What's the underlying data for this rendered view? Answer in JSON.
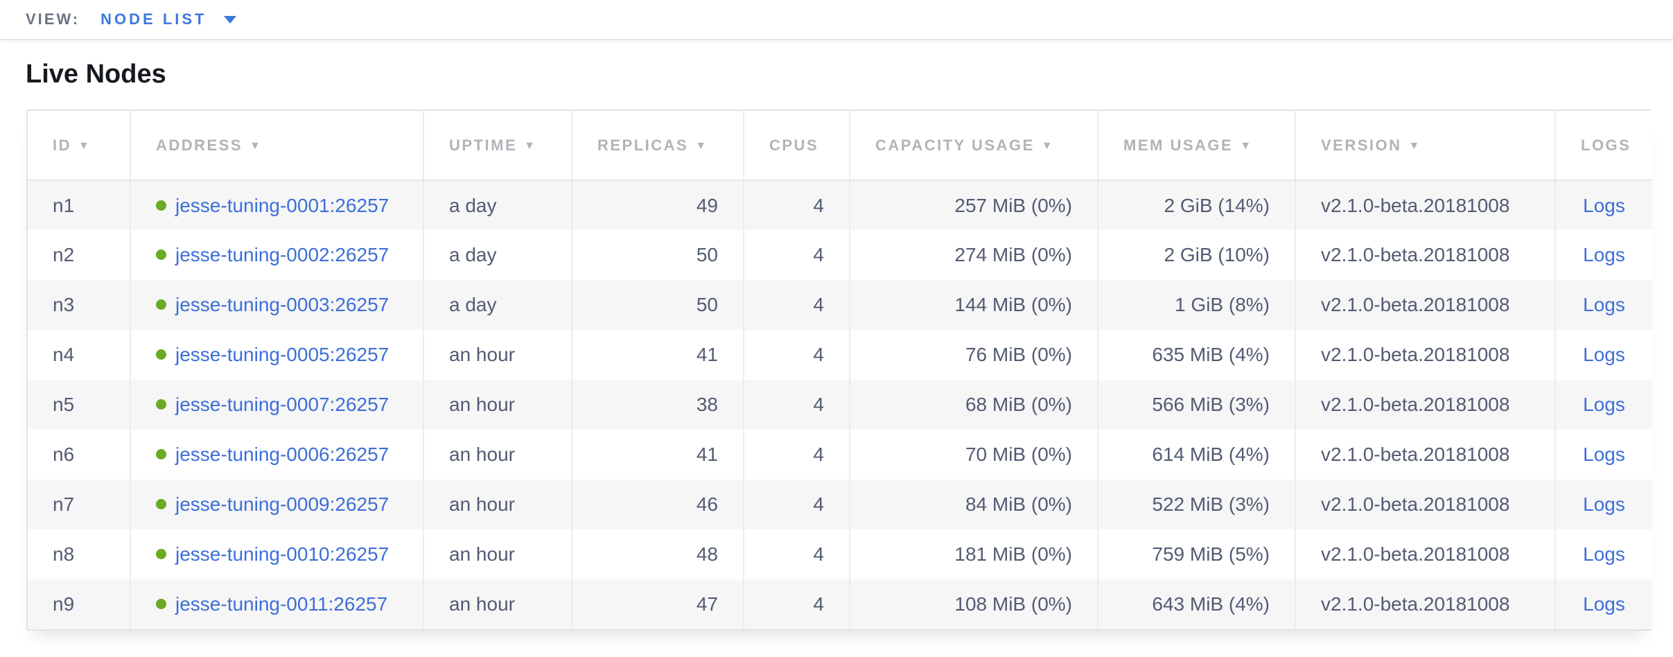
{
  "view_bar": {
    "label": "VIEW:",
    "selected": "NODE LIST"
  },
  "page": {
    "title": "Live Nodes"
  },
  "icons": {
    "sort_desc_caret": "▼"
  },
  "colors": {
    "accent_blue": "#3d78e0",
    "link_blue": "#3c6ed8",
    "live_status_green": "#69aa23",
    "header_text_gray": "#b1b3b8",
    "cell_text_slate": "#525b72"
  },
  "table": {
    "columns": [
      {
        "key": "id",
        "label": "ID",
        "sortable": true
      },
      {
        "key": "address",
        "label": "ADDRESS",
        "sortable": true
      },
      {
        "key": "uptime",
        "label": "UPTIME",
        "sortable": true
      },
      {
        "key": "replicas",
        "label": "REPLICAS",
        "sortable": true
      },
      {
        "key": "cpus",
        "label": "CPUS",
        "sortable": false
      },
      {
        "key": "capacity",
        "label": "CAPACITY USAGE",
        "sortable": true
      },
      {
        "key": "mem",
        "label": "MEM USAGE",
        "sortable": true
      },
      {
        "key": "version",
        "label": "VERSION",
        "sortable": true
      },
      {
        "key": "logs",
        "label": "LOGS",
        "sortable": false
      }
    ],
    "rows": [
      {
        "id": "n1",
        "status": "live",
        "address": "jesse-tuning-0001:26257",
        "uptime": "a day",
        "replicas": "49",
        "cpus": "4",
        "capacity": "257 MiB (0%)",
        "mem": "2 GiB (14%)",
        "version": "v2.1.0-beta.20181008",
        "logs": "Logs"
      },
      {
        "id": "n2",
        "status": "live",
        "address": "jesse-tuning-0002:26257",
        "uptime": "a day",
        "replicas": "50",
        "cpus": "4",
        "capacity": "274 MiB (0%)",
        "mem": "2 GiB (10%)",
        "version": "v2.1.0-beta.20181008",
        "logs": "Logs"
      },
      {
        "id": "n3",
        "status": "live",
        "address": "jesse-tuning-0003:26257",
        "uptime": "a day",
        "replicas": "50",
        "cpus": "4",
        "capacity": "144 MiB (0%)",
        "mem": "1 GiB (8%)",
        "version": "v2.1.0-beta.20181008",
        "logs": "Logs"
      },
      {
        "id": "n4",
        "status": "live",
        "address": "jesse-tuning-0005:26257",
        "uptime": "an hour",
        "replicas": "41",
        "cpus": "4",
        "capacity": "76 MiB (0%)",
        "mem": "635 MiB (4%)",
        "version": "v2.1.0-beta.20181008",
        "logs": "Logs"
      },
      {
        "id": "n5",
        "status": "live",
        "address": "jesse-tuning-0007:26257",
        "uptime": "an hour",
        "replicas": "38",
        "cpus": "4",
        "capacity": "68 MiB (0%)",
        "mem": "566 MiB (3%)",
        "version": "v2.1.0-beta.20181008",
        "logs": "Logs"
      },
      {
        "id": "n6",
        "status": "live",
        "address": "jesse-tuning-0006:26257",
        "uptime": "an hour",
        "replicas": "41",
        "cpus": "4",
        "capacity": "70 MiB (0%)",
        "mem": "614 MiB (4%)",
        "version": "v2.1.0-beta.20181008",
        "logs": "Logs"
      },
      {
        "id": "n7",
        "status": "live",
        "address": "jesse-tuning-0009:26257",
        "uptime": "an hour",
        "replicas": "46",
        "cpus": "4",
        "capacity": "84 MiB (0%)",
        "mem": "522 MiB (3%)",
        "version": "v2.1.0-beta.20181008",
        "logs": "Logs"
      },
      {
        "id": "n8",
        "status": "live",
        "address": "jesse-tuning-0010:26257",
        "uptime": "an hour",
        "replicas": "48",
        "cpus": "4",
        "capacity": "181 MiB (0%)",
        "mem": "759 MiB (5%)",
        "version": "v2.1.0-beta.20181008",
        "logs": "Logs"
      },
      {
        "id": "n9",
        "status": "live",
        "address": "jesse-tuning-0011:26257",
        "uptime": "an hour",
        "replicas": "47",
        "cpus": "4",
        "capacity": "108 MiB (0%)",
        "mem": "643 MiB (4%)",
        "version": "v2.1.0-beta.20181008",
        "logs": "Logs"
      }
    ]
  }
}
